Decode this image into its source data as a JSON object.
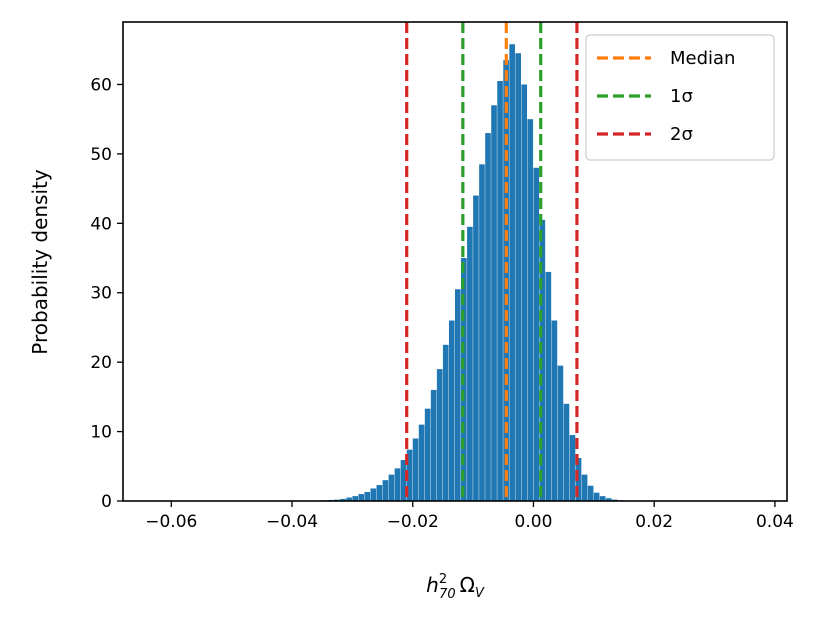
{
  "chart_data": {
    "type": "bar",
    "title": "",
    "xlabel_main": "h",
    "xlabel_sup": "2",
    "xlabel_sub": "70",
    "xlabel_tail": "Ω",
    "xlabel_tail_sub": "V",
    "ylabel": "Probability density",
    "xlim": [
      -0.068,
      0.042
    ],
    "ylim": [
      0,
      69
    ],
    "xticks": [
      -0.06,
      -0.04,
      -0.02,
      0.0,
      0.02,
      0.04
    ],
    "xtick_labels": [
      "−0.06",
      "−0.04",
      "−0.02",
      "0.00",
      "0.02",
      "0.04"
    ],
    "yticks": [
      0,
      10,
      20,
      30,
      40,
      50,
      60
    ],
    "ytick_labels": [
      "0",
      "10",
      "20",
      "30",
      "40",
      "50",
      "60"
    ],
    "histogram": {
      "bin_start": -0.035,
      "bin_width": 0.001,
      "values": [
        0.1,
        0.15,
        0.2,
        0.3,
        0.5,
        0.7,
        1.0,
        1.3,
        1.8,
        2.3,
        3.0,
        3.8,
        4.7,
        5.9,
        7.4,
        9.0,
        11.0,
        13.3,
        16.0,
        19.0,
        22.5,
        26.0,
        30.5,
        35.0,
        39.5,
        44.0,
        48.5,
        53.0,
        57.0,
        60.5,
        63.5,
        65.8,
        64.5,
        60.0,
        55.0,
        48.0,
        40.5,
        33.0,
        26.0,
        19.5,
        14.0,
        9.5,
        6.2,
        3.8,
        2.2,
        1.2,
        0.7,
        0.4,
        0.2,
        0.1,
        0.05
      ],
      "color": "#1f77b4"
    },
    "vlines": [
      {
        "name": "Median",
        "x": -0.0045,
        "color": "#ff7f0e"
      },
      {
        "name": "1σ",
        "x": -0.0117,
        "color": "#2ca02c"
      },
      {
        "name": "1σ",
        "x": 0.0012,
        "color": "#2ca02c"
      },
      {
        "name": "2σ",
        "x": -0.021,
        "color": "#d62728"
      },
      {
        "name": "2σ",
        "x": 0.0072,
        "color": "#d62728"
      }
    ],
    "legend": {
      "placement": "top-right",
      "entries": [
        {
          "label": "Median",
          "color": "#ff7f0e"
        },
        {
          "label": "1σ",
          "color": "#2ca02c"
        },
        {
          "label": "2σ",
          "color": "#d62728"
        }
      ]
    }
  }
}
